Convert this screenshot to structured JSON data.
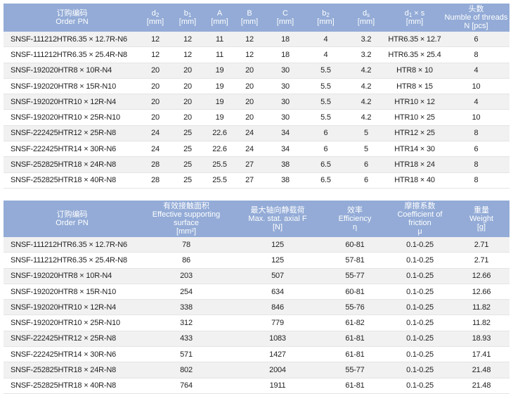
{
  "tables": [
    {
      "headers": [
        {
          "lines": [
            "订购编码",
            "Order PN"
          ]
        },
        {
          "symbol": "d",
          "sub": "2",
          "unit": "[mm]"
        },
        {
          "symbol": "b",
          "sub": "1",
          "unit": "[mm]"
        },
        {
          "symbol": "A",
          "unit": "[mm]"
        },
        {
          "symbol": "B",
          "unit": "[mm]"
        },
        {
          "symbol": "C",
          "unit": "[mm]"
        },
        {
          "symbol": "b",
          "sub": "2",
          "unit": "[mm]"
        },
        {
          "symbol": "d",
          "sub": "s",
          "unit": "[mm]"
        },
        {
          "symbol": "d",
          "sub": "1",
          "suffix": "× s",
          "unit": "[mm]"
        },
        {
          "lines": [
            "头数",
            "Numble of threads",
            "N [pcs]"
          ]
        }
      ],
      "rows": [
        [
          "SNSF-111212HTR6.35 × 12.7R-N6",
          12,
          12,
          11,
          12,
          18,
          4,
          3.2,
          "HTR6.35 × 12.7",
          6
        ],
        [
          "SNSF-111212HTR6.35 × 25.4R-N8",
          12,
          12,
          11,
          12,
          18,
          4,
          3.2,
          "HTR6.35 × 25.4",
          8
        ],
        [
          "SNSF-192020HTR8 × 10R-N4",
          20,
          20,
          19,
          20,
          30,
          5.5,
          4.2,
          "HTR8 × 10",
          4
        ],
        [
          "SNSF-192020HTR8 × 15R-N10",
          20,
          20,
          19,
          20,
          30,
          5.5,
          4.2,
          "HTR8 × 15",
          10
        ],
        [
          "SNSF-192020HTR10 × 12R-N4",
          20,
          20,
          19,
          20,
          30,
          5.5,
          4.2,
          "HTR10 × 12",
          4
        ],
        [
          "SNSF-192020HTR10 × 25R-N10",
          20,
          20,
          19,
          20,
          30,
          5.5,
          4.2,
          "HTR10 × 25",
          10
        ],
        [
          "SNSF-222425HTR12 × 25R-N8",
          24,
          25,
          22.6,
          24,
          34,
          6,
          5,
          "HTR12 × 25",
          8
        ],
        [
          "SNSF-222425HTR14 × 30R-N6",
          24,
          25,
          22.6,
          24,
          34,
          6,
          5,
          "HTR14 × 30",
          6
        ],
        [
          "SNSF-252825HTR18 × 24R-N8",
          28,
          25,
          25.5,
          27,
          38,
          6.5,
          6,
          "HTR18 × 24",
          8
        ],
        [
          "SNSF-252825HTR18 × 40R-N8",
          28,
          25,
          25.5,
          27,
          38,
          6.5,
          6,
          "HTR18 × 40",
          8
        ]
      ]
    },
    {
      "headers": [
        {
          "lines": [
            "订购编码",
            "Order PN"
          ]
        },
        {
          "lines": [
            "有效接触面积",
            "Effective supporting surface",
            "[mm²]"
          ]
        },
        {
          "lines": [
            "最大轴向静载荷",
            "Max. stat. axial F",
            "[N]"
          ]
        },
        {
          "lines": [
            "效率",
            "Efficiency",
            "η"
          ]
        },
        {
          "lines": [
            "摩擦系数",
            "Coefficient of friction",
            "μ"
          ]
        },
        {
          "lines": [
            "重量",
            "Weight",
            "[g]"
          ]
        }
      ],
      "rows": [
        [
          "SNSF-111212HTR6.35 × 12.7R-N6",
          78,
          125,
          "60-81",
          "0.1-0.25",
          2.71
        ],
        [
          "SNSF-111212HTR6.35 × 25.4R-N8",
          86,
          125,
          "57-81",
          "0.1-0.25",
          2.71
        ],
        [
          "SNSF-192020HTR8 × 10R-N4",
          203,
          507,
          "55-77",
          "0.1-0.25",
          12.66
        ],
        [
          "SNSF-192020HTR8 × 15R-N10",
          254,
          634,
          "60-81",
          "0.1-0.25",
          12.66
        ],
        [
          "SNSF-192020HTR10 × 12R-N4",
          338,
          846,
          "55-76",
          "0.1-0.25",
          11.82
        ],
        [
          "SNSF-192020HTR10 × 25R-N10",
          312,
          779,
          "61-82",
          "0.1-0.25",
          11.82
        ],
        [
          "SNSF-222425HTR12 × 25R-N8",
          433,
          1083,
          "61-81",
          "0.1-0.25",
          18.93
        ],
        [
          "SNSF-222425HTR14 × 30R-N6",
          571,
          1427,
          "61-81",
          "0.1-0.25",
          17.41
        ],
        [
          "SNSF-252825HTR18 × 24R-N8",
          802,
          2004,
          "55-77",
          "0.1-0.25",
          21.48
        ],
        [
          "SNSF-252825HTR18 × 40R-N8",
          764,
          1911,
          "61-81",
          "0.1-0.25",
          21.48
        ]
      ]
    }
  ]
}
